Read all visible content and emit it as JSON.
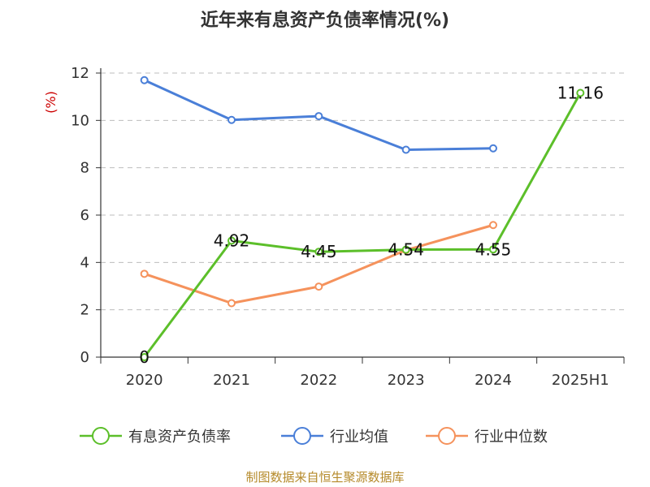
{
  "chart_data": {
    "type": "line",
    "title": "近年来有息资产负债率情况(%)",
    "ylabel": "(%)",
    "xlabel": "",
    "categories": [
      "2020",
      "2021",
      "2022",
      "2023",
      "2024",
      "2025H1"
    ],
    "ylim": [
      0,
      12
    ],
    "yticks": [
      0,
      2,
      4,
      6,
      8,
      10,
      12
    ],
    "grid": true,
    "legend_position": "bottom",
    "series": [
      {
        "name": "有息资产负债率",
        "color": "#5cbf2a",
        "values": [
          0,
          4.92,
          4.45,
          4.54,
          4.55,
          11.16
        ],
        "data_labels": [
          "0",
          "4.92",
          "4.45",
          "4.54",
          "4.55",
          "11.16"
        ]
      },
      {
        "name": "行业均值",
        "color": "#4a7fd8",
        "values": [
          11.7,
          10.02,
          10.18,
          8.76,
          8.82,
          null
        ]
      },
      {
        "name": "行业中位数",
        "color": "#f5925c",
        "values": [
          3.52,
          2.28,
          2.98,
          4.52,
          5.58,
          null
        ]
      }
    ]
  },
  "source": "制图数据来自恒生聚源数据库"
}
